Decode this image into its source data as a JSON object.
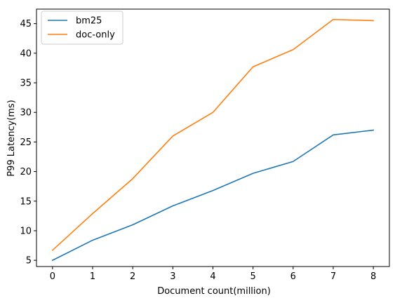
{
  "chart_data": {
    "type": "line",
    "xlabel": "Document count(million)",
    "ylabel": "P99 Latency(ms)",
    "x": [
      0,
      1,
      2,
      3,
      4,
      5,
      6,
      7,
      8
    ],
    "xlim": [
      -0.4,
      8.4
    ],
    "ylim": [
      3.95,
      47.45
    ],
    "xticks": [
      0,
      1,
      2,
      3,
      4,
      5,
      6,
      7,
      8
    ],
    "yticks": [
      5,
      10,
      15,
      20,
      25,
      30,
      35,
      40,
      45
    ],
    "grid": false,
    "legend_position": "top-left",
    "series": [
      {
        "name": "bm25",
        "color": "#1f77b4",
        "values": [
          5.0,
          8.4,
          11.0,
          14.2,
          16.8,
          19.7,
          21.7,
          26.2,
          27.0
        ]
      },
      {
        "name": "doc-only",
        "color": "#ff7f0e",
        "values": [
          6.7,
          12.9,
          18.8,
          26.0,
          30.0,
          37.7,
          40.6,
          45.7,
          45.5
        ]
      }
    ]
  }
}
